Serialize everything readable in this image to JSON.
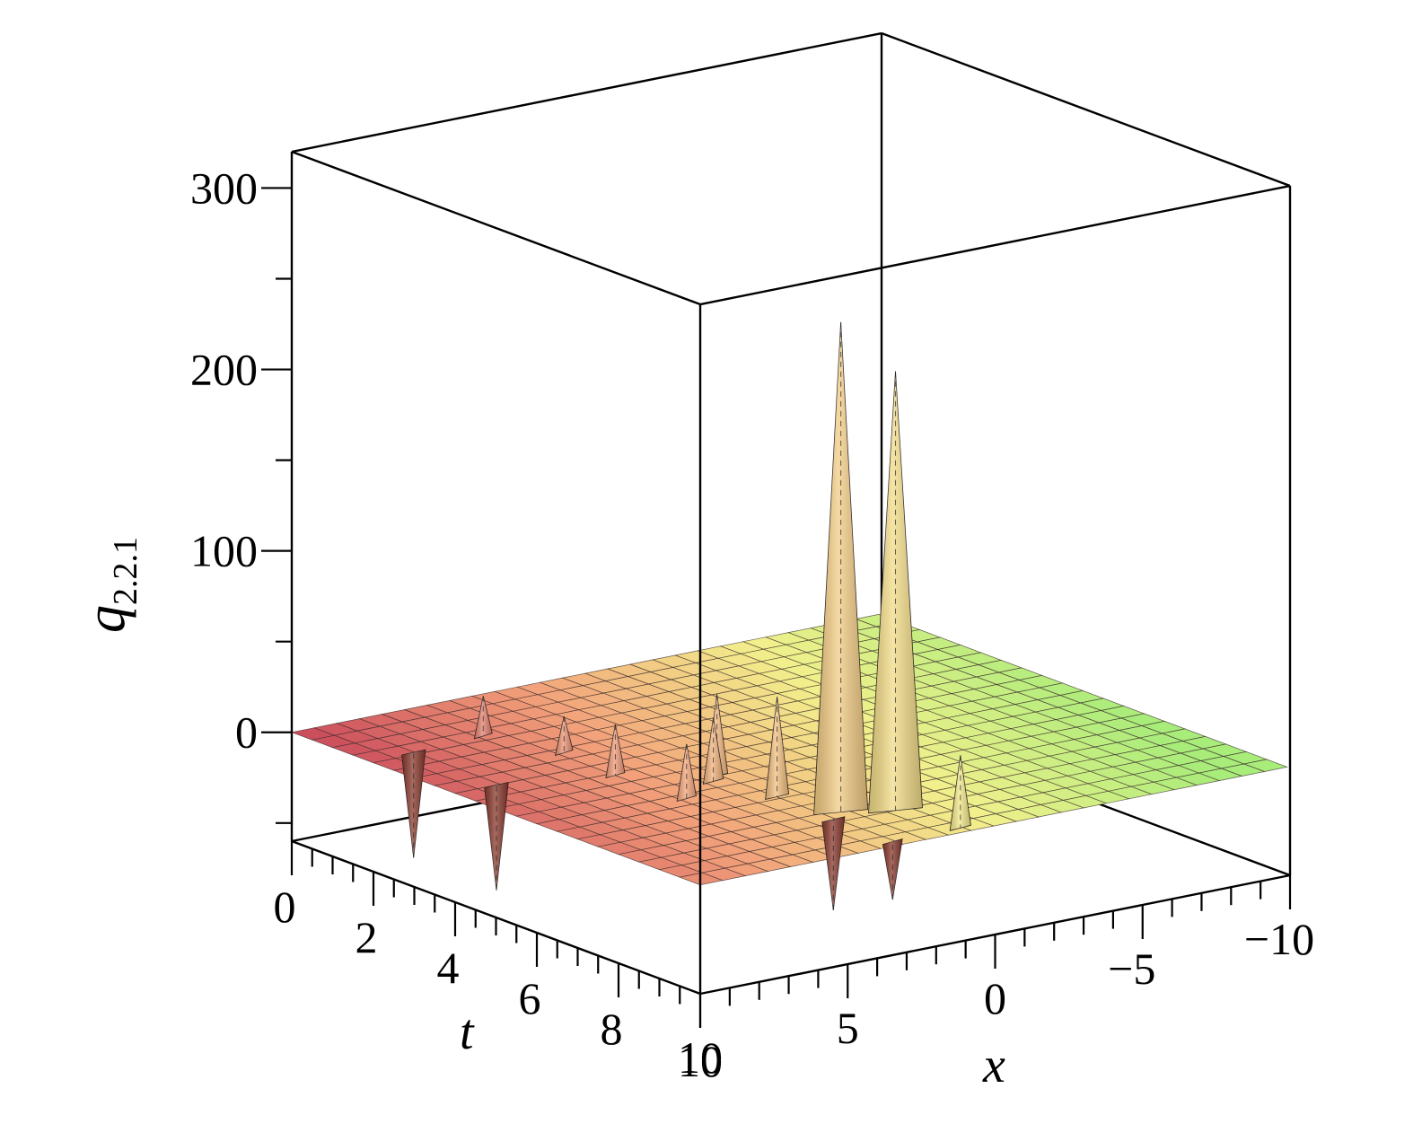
{
  "chart_data": {
    "type": "surface3d",
    "title": "",
    "zlabel_base": "q",
    "zlabel_sub": "2.2.1",
    "tlabel": "t",
    "xlabel": "x",
    "t_range": [
      0,
      10
    ],
    "x_range": [
      -10,
      10
    ],
    "z_range": [
      -60,
      320
    ],
    "z_ticks": [
      0,
      100,
      200,
      300
    ],
    "t_ticks": [
      0,
      2,
      4,
      6,
      8,
      10
    ],
    "x_ticks": [
      10,
      5,
      0,
      -5,
      -10
    ],
    "grid": false,
    "colormap": [
      "#c8485a",
      "#f2a07a",
      "#f2f08c",
      "#a8ec7a"
    ],
    "features": [
      {
        "t": 8.1,
        "x": 2.6,
        "z": 270
      },
      {
        "t": 8.5,
        "x": 1.3,
        "z": 242
      },
      {
        "t": 8.35,
        "x": 3.2,
        "z": -50
      },
      {
        "t": 6.9,
        "x": 3.1,
        "z": 55
      },
      {
        "t": 5.5,
        "x": 3.2,
        "z": 45
      },
      {
        "t": 5.7,
        "x": 3.6,
        "z": 35
      },
      {
        "t": 1.8,
        "x": 6.0,
        "z": 22
      },
      {
        "t": 3.2,
        "x": 5.2,
        "z": 20
      },
      {
        "t": 1.9,
        "x": 8.5,
        "z": -58
      },
      {
        "t": 4.0,
        "x": 8.6,
        "z": -58
      },
      {
        "t": 9.8,
        "x": 0.9,
        "z": 40
      },
      {
        "t": 9.8,
        "x": 3.2,
        "z": -32
      },
      {
        "t": 6.2,
        "x": 5.2,
        "z": 30
      },
      {
        "t": 4.6,
        "x": 5.4,
        "z": 28
      }
    ]
  }
}
